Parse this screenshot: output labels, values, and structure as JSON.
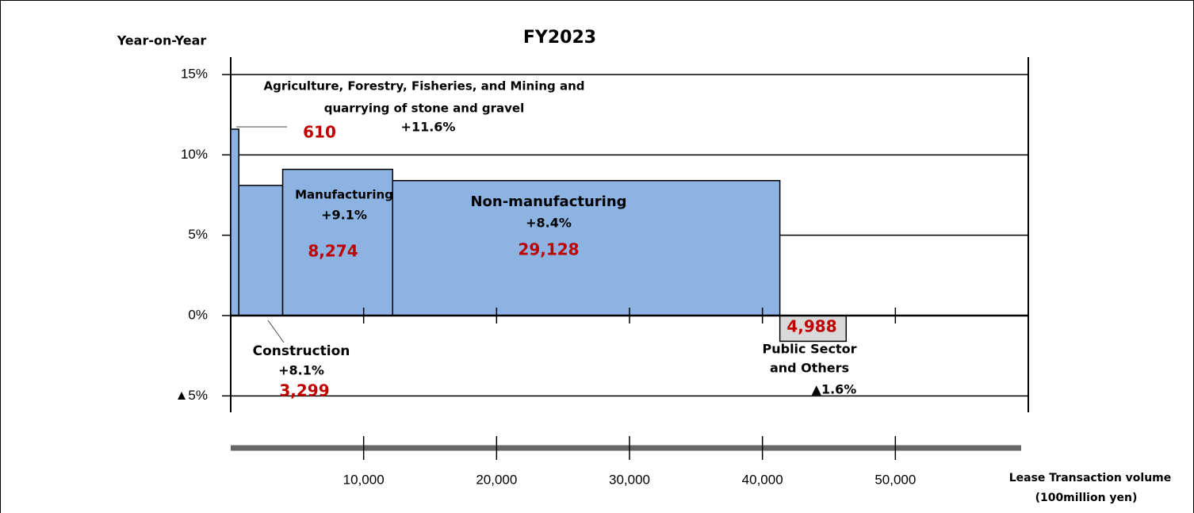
{
  "chart_data": {
    "type": "variwide",
    "title": "FY2023",
    "y_axis_label": "Year-on-Year",
    "x_axis_label": [
      "Lease Transaction volume",
      "(100million yen)"
    ],
    "categories": [
      [
        "Agriculture, Forestry, Fisheries, and Mining and",
        "quarrying of stone and gravel"
      ],
      [
        "Construction"
      ],
      [
        "Manufacturing"
      ],
      [
        "Non-manufacturing"
      ],
      [
        "Public Sector",
        "and Others"
      ]
    ],
    "widths": [
      610,
      3299,
      8274,
      29128,
      4988
    ],
    "width_labels": [
      "610",
      "3,299",
      "8,274",
      "29,128",
      "4,988"
    ],
    "values": [
      11.6,
      8.1,
      9.1,
      8.4,
      -1.6
    ],
    "value_labels": [
      "+11.6%",
      "+8.1%",
      "+9.1%",
      "+8.4%",
      "▲1.6%"
    ],
    "colors": [
      "#8db3e2",
      "#8db3e2",
      "#8db3e2",
      "#8db3e2",
      "#d9d9d9"
    ],
    "xlim": [
      0,
      60000
    ],
    "xticks": [
      {
        "value": 10000,
        "label": "10,000"
      },
      {
        "value": 20000,
        "label": "20,000"
      },
      {
        "value": 30000,
        "label": "30,000"
      },
      {
        "value": 40000,
        "label": "40,000"
      },
      {
        "value": 50000,
        "label": "50,000"
      }
    ],
    "ylim": [
      -5,
      15
    ],
    "yticks": [
      {
        "value": 15,
        "label": "15%"
      },
      {
        "value": 10,
        "label": "10%"
      },
      {
        "value": 5,
        "label": "5%"
      },
      {
        "value": 0,
        "label": "0%"
      },
      {
        "value": -5,
        "label": "▲5%"
      }
    ]
  }
}
